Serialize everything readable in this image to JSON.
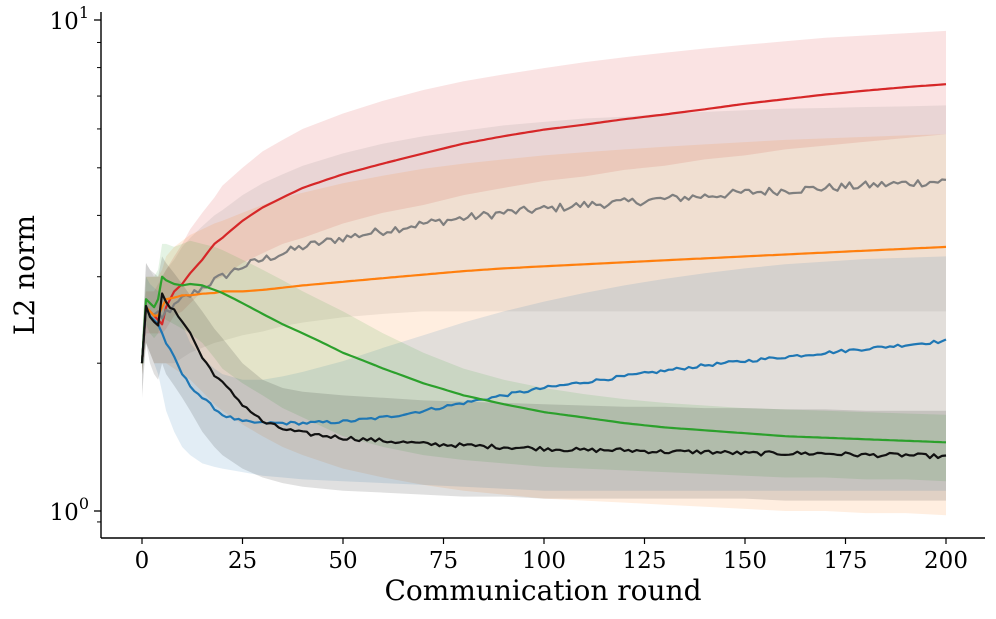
{
  "chart_data": {
    "type": "line",
    "title": "",
    "xlabel": "Communication round",
    "ylabel": "L2 norm",
    "xlim": [
      -10,
      210
    ],
    "ylim": [
      0.92,
      10.2
    ],
    "yscale": "log",
    "grid": false,
    "legend": null,
    "x_ticks": [
      0,
      25,
      50,
      75,
      100,
      125,
      150,
      175,
      200
    ],
    "x_tick_labels": [
      "0",
      "25",
      "50",
      "75",
      "100",
      "125",
      "150",
      "175",
      "200"
    ],
    "y_ticks": [
      {
        "value": 1,
        "base": "10",
        "exp": "0"
      },
      {
        "value": 10,
        "base": "10",
        "exp": "1"
      }
    ],
    "x": [
      0,
      1,
      2,
      3,
      4,
      5,
      6,
      8,
      10,
      12,
      15,
      18,
      20,
      25,
      30,
      35,
      40,
      50,
      60,
      70,
      80,
      90,
      100,
      110,
      120,
      130,
      140,
      150,
      160,
      170,
      180,
      190,
      200
    ],
    "series": [
      {
        "name": "red",
        "color": "#d62728",
        "noise": 0,
        "mean": [
          2.0,
          2.6,
          2.55,
          2.5,
          2.45,
          2.4,
          2.6,
          2.8,
          2.9,
          3.05,
          3.25,
          3.5,
          3.6,
          3.9,
          4.15,
          4.35,
          4.55,
          4.85,
          5.1,
          5.35,
          5.6,
          5.8,
          5.98,
          6.12,
          6.28,
          6.42,
          6.58,
          6.75,
          6.9,
          7.05,
          7.18,
          7.3,
          7.4
        ],
        "lower": [
          1.9,
          2.3,
          2.3,
          2.3,
          2.3,
          2.3,
          2.35,
          2.5,
          2.55,
          2.65,
          2.8,
          2.95,
          3.0,
          3.2,
          3.35,
          3.5,
          3.6,
          3.85,
          4.05,
          4.2,
          4.4,
          4.55,
          4.7,
          4.8,
          4.95,
          5.05,
          5.2,
          5.3,
          5.45,
          5.55,
          5.65,
          5.75,
          5.85
        ],
        "upper": [
          2.1,
          2.8,
          2.8,
          2.8,
          2.9,
          3.0,
          3.1,
          3.3,
          3.5,
          3.75,
          4.05,
          4.35,
          4.6,
          5.0,
          5.4,
          5.7,
          6.0,
          6.45,
          6.85,
          7.2,
          7.5,
          7.75,
          7.98,
          8.2,
          8.4,
          8.58,
          8.75,
          8.9,
          9.05,
          9.2,
          9.3,
          9.4,
          9.5
        ]
      },
      {
        "name": "gray",
        "color": "#7f7f7f",
        "noise": 0.04,
        "mean": [
          2.0,
          2.6,
          2.55,
          2.5,
          2.5,
          2.45,
          2.55,
          2.6,
          2.7,
          2.75,
          2.85,
          2.95,
          3.0,
          3.15,
          3.25,
          3.35,
          3.45,
          3.6,
          3.72,
          3.85,
          3.95,
          4.05,
          4.12,
          4.2,
          4.25,
          4.32,
          4.38,
          4.45,
          4.5,
          4.55,
          4.6,
          4.65,
          4.7
        ],
        "lower": [
          1.75,
          2.2,
          2.1,
          2.0,
          2.0,
          2.0,
          2.0,
          2.0,
          2.05,
          2.1,
          2.15,
          2.2,
          2.22,
          2.28,
          2.32,
          2.38,
          2.42,
          2.48,
          2.52,
          2.55,
          2.55,
          2.55,
          2.55,
          2.55,
          2.55,
          2.55,
          2.55,
          2.55,
          2.55,
          2.55,
          2.55,
          2.55,
          2.55
        ],
        "upper": [
          2.2,
          3.2,
          3.1,
          3.0,
          3.0,
          3.0,
          3.1,
          3.25,
          3.45,
          3.6,
          3.8,
          4.0,
          4.1,
          4.4,
          4.65,
          4.85,
          5.05,
          5.35,
          5.6,
          5.8,
          5.95,
          6.1,
          6.2,
          6.3,
          6.35,
          6.45,
          6.5,
          6.55,
          6.6,
          6.62,
          6.65,
          6.67,
          6.7
        ]
      },
      {
        "name": "orange",
        "color": "#ff7f0e",
        "noise": 0,
        "mean": [
          2.0,
          2.6,
          2.55,
          2.5,
          2.5,
          2.6,
          2.7,
          2.72,
          2.75,
          2.75,
          2.77,
          2.78,
          2.8,
          2.8,
          2.82,
          2.85,
          2.88,
          2.93,
          2.98,
          3.03,
          3.08,
          3.12,
          3.15,
          3.18,
          3.21,
          3.24,
          3.27,
          3.3,
          3.33,
          3.36,
          3.39,
          3.42,
          3.45
        ],
        "lower": [
          1.9,
          2.2,
          2.1,
          2.0,
          2.0,
          2.0,
          2.0,
          1.95,
          1.9,
          1.85,
          1.75,
          1.65,
          1.6,
          1.5,
          1.42,
          1.35,
          1.3,
          1.22,
          1.17,
          1.13,
          1.1,
          1.08,
          1.06,
          1.05,
          1.04,
          1.03,
          1.02,
          1.01,
          1.0,
          1.0,
          0.99,
          0.99,
          0.98
        ],
        "upper": [
          2.1,
          3.0,
          3.0,
          3.0,
          3.0,
          3.1,
          3.3,
          3.45,
          3.55,
          3.65,
          3.75,
          3.85,
          3.9,
          4.05,
          4.2,
          4.35,
          4.45,
          4.65,
          4.82,
          4.98,
          5.1,
          5.2,
          5.3,
          5.38,
          5.45,
          5.52,
          5.58,
          5.64,
          5.7,
          5.74,
          5.78,
          5.82,
          5.85
        ]
      },
      {
        "name": "blue",
        "color": "#1f77b4",
        "noise": 0.015,
        "mean": [
          2.0,
          2.6,
          2.5,
          2.45,
          2.4,
          2.3,
          2.2,
          2.05,
          1.9,
          1.8,
          1.7,
          1.62,
          1.57,
          1.52,
          1.51,
          1.51,
          1.51,
          1.52,
          1.55,
          1.6,
          1.66,
          1.72,
          1.78,
          1.83,
          1.88,
          1.93,
          1.98,
          2.02,
          2.06,
          2.1,
          2.14,
          2.18,
          2.22
        ],
        "lower": [
          1.9,
          2.2,
          2.1,
          2.0,
          1.9,
          1.75,
          1.6,
          1.45,
          1.35,
          1.3,
          1.25,
          1.23,
          1.22,
          1.2,
          1.18,
          1.17,
          1.16,
          1.15,
          1.14,
          1.13,
          1.12,
          1.11,
          1.1,
          1.1,
          1.1,
          1.1,
          1.1,
          1.1,
          1.1,
          1.1,
          1.1,
          1.1,
          1.1
        ],
        "upper": [
          2.1,
          3.0,
          2.9,
          2.85,
          2.8,
          2.75,
          2.7,
          2.55,
          2.4,
          2.2,
          2.05,
          1.95,
          1.9,
          1.85,
          1.85,
          1.88,
          1.92,
          2.02,
          2.15,
          2.28,
          2.42,
          2.55,
          2.67,
          2.78,
          2.88,
          2.97,
          3.05,
          3.12,
          3.18,
          3.22,
          3.26,
          3.28,
          3.3
        ]
      },
      {
        "name": "green",
        "color": "#2ca02c",
        "noise": 0,
        "mean": [
          2.0,
          2.7,
          2.65,
          2.6,
          2.7,
          3.0,
          2.95,
          2.9,
          2.88,
          2.9,
          2.88,
          2.82,
          2.78,
          2.65,
          2.52,
          2.4,
          2.3,
          2.1,
          1.95,
          1.82,
          1.72,
          1.65,
          1.59,
          1.55,
          1.51,
          1.48,
          1.46,
          1.44,
          1.42,
          1.41,
          1.4,
          1.39,
          1.38
        ],
        "lower": [
          1.9,
          2.4,
          2.3,
          2.25,
          2.3,
          2.5,
          2.45,
          2.4,
          2.35,
          2.3,
          2.2,
          2.05,
          1.95,
          1.82,
          1.72,
          1.62,
          1.55,
          1.42,
          1.35,
          1.3,
          1.27,
          1.25,
          1.23,
          1.22,
          1.21,
          1.2,
          1.19,
          1.18,
          1.17,
          1.17,
          1.16,
          1.16,
          1.15
        ],
        "upper": [
          2.1,
          3.0,
          3.0,
          3.0,
          3.1,
          3.5,
          3.5,
          3.45,
          3.5,
          3.55,
          3.5,
          3.45,
          3.4,
          3.25,
          3.1,
          2.95,
          2.8,
          2.55,
          2.3,
          2.1,
          1.95,
          1.85,
          1.78,
          1.73,
          1.69,
          1.66,
          1.64,
          1.62,
          1.61,
          1.6,
          1.59,
          1.58,
          1.57
        ]
      },
      {
        "name": "black",
        "color": "#111111",
        "noise": 0.02,
        "mean": [
          2.0,
          2.6,
          2.5,
          2.45,
          2.4,
          2.75,
          2.65,
          2.55,
          2.45,
          2.3,
          2.05,
          1.9,
          1.82,
          1.65,
          1.52,
          1.47,
          1.44,
          1.41,
          1.39,
          1.37,
          1.36,
          1.35,
          1.34,
          1.33,
          1.33,
          1.32,
          1.32,
          1.31,
          1.31,
          1.31,
          1.3,
          1.3,
          1.29
        ],
        "lower": [
          1.7,
          2.2,
          2.0,
          1.9,
          1.85,
          2.0,
          1.9,
          1.8,
          1.7,
          1.6,
          1.45,
          1.35,
          1.3,
          1.22,
          1.17,
          1.14,
          1.12,
          1.1,
          1.09,
          1.08,
          1.07,
          1.07,
          1.06,
          1.06,
          1.06,
          1.06,
          1.06,
          1.06,
          1.05,
          1.05,
          1.05,
          1.05,
          1.05
        ],
        "upper": [
          2.2,
          3.2,
          3.1,
          3.05,
          3.0,
          3.3,
          3.2,
          3.05,
          2.9,
          2.75,
          2.55,
          2.35,
          2.25,
          2.0,
          1.85,
          1.78,
          1.75,
          1.72,
          1.7,
          1.68,
          1.67,
          1.66,
          1.65,
          1.64,
          1.63,
          1.63,
          1.62,
          1.62,
          1.61,
          1.61,
          1.6,
          1.6,
          1.6
        ]
      }
    ]
  }
}
